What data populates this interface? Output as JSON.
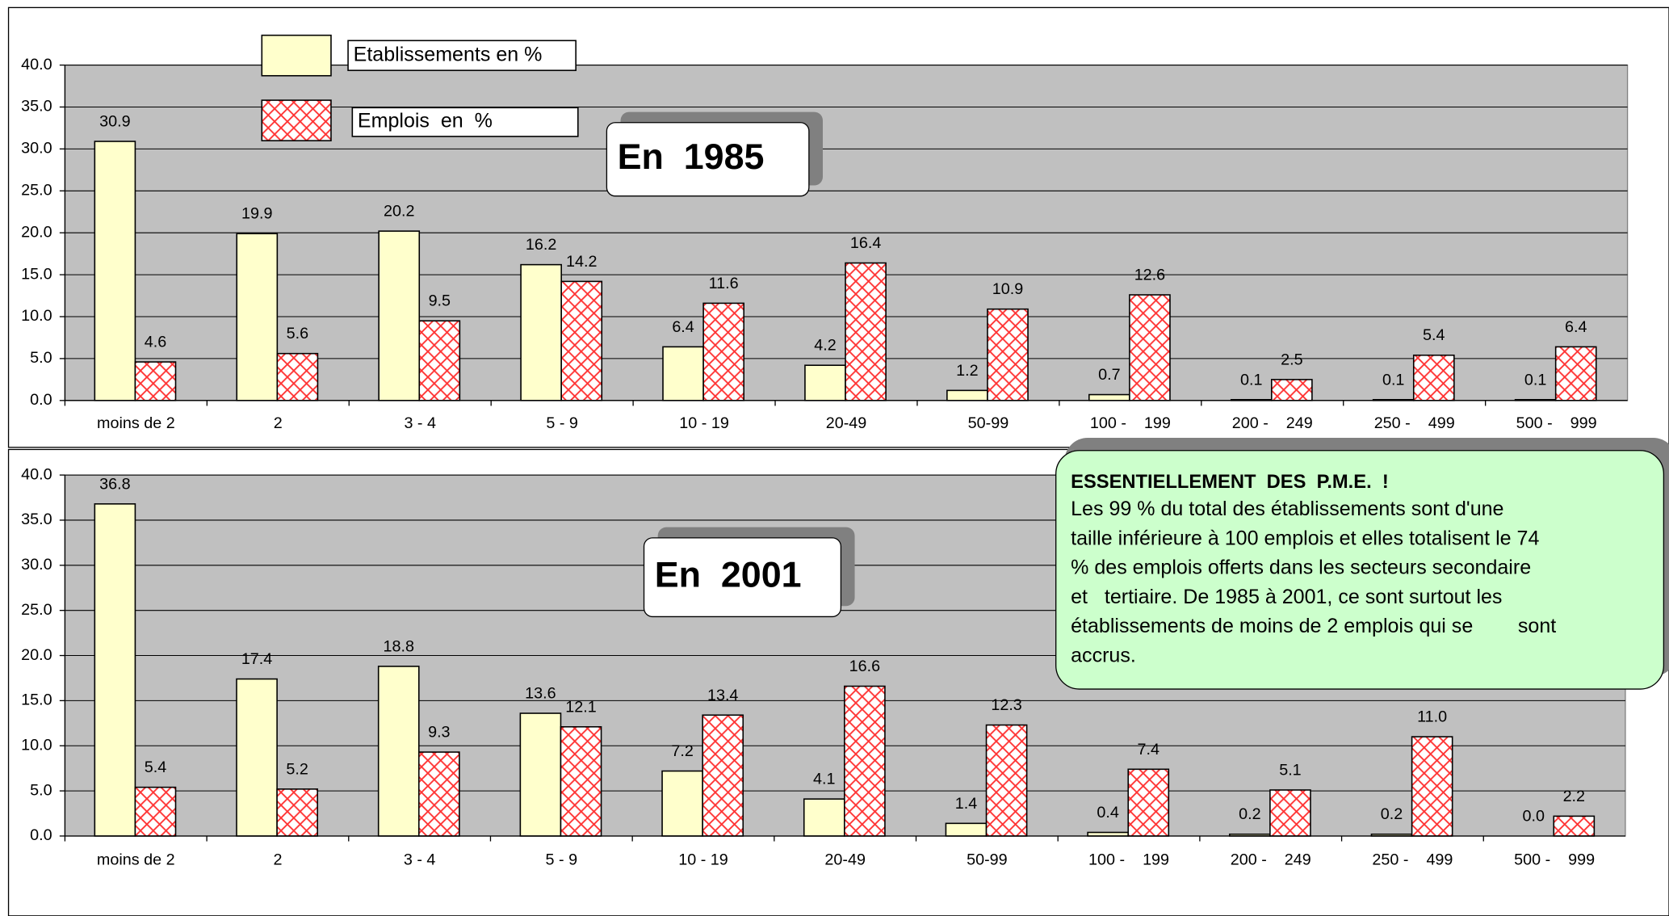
{
  "chart_data": [
    {
      "type": "bar",
      "title": "En  1985",
      "categories": [
        "moins de 2",
        "2",
        "3 - 4",
        "5 - 9",
        "10 - 19",
        "20-49",
        "50-99",
        "100 -    199",
        "200 -    249",
        "250 -    499",
        "500 -    999"
      ],
      "series": [
        {
          "name": "Etablissements en %",
          "color": "#ffffcc",
          "values": [
            30.9,
            19.9,
            20.2,
            16.2,
            6.4,
            4.2,
            1.2,
            0.7,
            0.1,
            0.1,
            0.1
          ],
          "value_labels": [
            "30.9",
            "19.9",
            "20.2",
            "16.2",
            "6.4",
            "4.2",
            "1.2",
            "0.7",
            "0.1",
            "0.1",
            "0.1"
          ]
        },
        {
          "name": "Emplois  en  %",
          "color": "#ff3333",
          "pattern": "crosshatch",
          "values": [
            4.6,
            5.6,
            9.5,
            14.2,
            11.6,
            16.4,
            10.9,
            12.6,
            2.5,
            5.4,
            6.4
          ],
          "value_labels": [
            "4.6",
            "5.6",
            "9.5",
            "14.2",
            "11.6",
            "16.4",
            "10.9",
            "12.6",
            "2.5",
            "5.4",
            "6.4"
          ]
        }
      ],
      "ylim": [
        0,
        40
      ],
      "yticks": [
        {
          "value": 0,
          "label": "0.0"
        },
        {
          "value": 5,
          "label": "5.0"
        },
        {
          "value": 10,
          "label": "10.0"
        },
        {
          "value": 15,
          "label": "15.0"
        },
        {
          "value": 20,
          "label": "20.0"
        },
        {
          "value": 25,
          "label": "25.0"
        },
        {
          "value": 30,
          "label": "30.0"
        },
        {
          "value": 35,
          "label": "35.0"
        },
        {
          "value": 40,
          "label": "40.0"
        }
      ],
      "grid": true,
      "legend": "top-left"
    },
    {
      "type": "bar",
      "title": "En  2001",
      "categories": [
        "moins de 2",
        "2",
        "3 - 4",
        "5 - 9",
        "10 - 19",
        "20-49",
        "50-99",
        "100 -    199",
        "200 -    249",
        "250 -    499",
        "500 -    999"
      ],
      "series": [
        {
          "name": "Etablissements en %",
          "color": "#ffffcc",
          "values": [
            36.8,
            17.4,
            18.8,
            13.6,
            7.2,
            4.1,
            1.4,
            0.4,
            0.2,
            0.2,
            0.0
          ],
          "value_labels": [
            "36.8",
            "17.4",
            "18.8",
            "13.6",
            "7.2",
            "4.1",
            "1.4",
            "0.4",
            "0.2",
            "0.2",
            "0.0"
          ]
        },
        {
          "name": "Emplois  en  %",
          "color": "#ff3333",
          "pattern": "crosshatch",
          "values": [
            5.4,
            5.2,
            9.3,
            12.1,
            13.4,
            16.6,
            12.3,
            7.4,
            5.1,
            11.0,
            2.2
          ],
          "value_labels": [
            "5.4",
            "5.2",
            "9.3",
            "12.1",
            "13.4",
            "16.6",
            "12.3",
            "7.4",
            "5.1",
            "11.0",
            "2.2"
          ]
        }
      ],
      "ylim": [
        0,
        40
      ],
      "yticks": [
        {
          "value": 0,
          "label": "0.0"
        },
        {
          "value": 5,
          "label": "5.0"
        },
        {
          "value": 10,
          "label": "10.0"
        },
        {
          "value": 15,
          "label": "15.0"
        },
        {
          "value": 20,
          "label": "20.0"
        },
        {
          "value": 25,
          "label": "25.0"
        },
        {
          "value": 30,
          "label": "30.0"
        },
        {
          "value": 35,
          "label": "35.0"
        },
        {
          "value": 40,
          "label": "40.0"
        }
      ],
      "grid": true
    }
  ],
  "note": {
    "title": "ESSENTIELLEMENT  DES  P.M.E.  !",
    "lines": [
      "Les 99 % du total des établissements sont d'une",
      "taille inférieure à 100 emplois et elles totalisent le 74",
      "% des emplois offerts dans les secteurs secondaire",
      "et   tertiaire. De 1985 à 2001, ce sont surtout les",
      "établissements de moins de 2 emplois qui se        sont",
      "accrus."
    ]
  }
}
